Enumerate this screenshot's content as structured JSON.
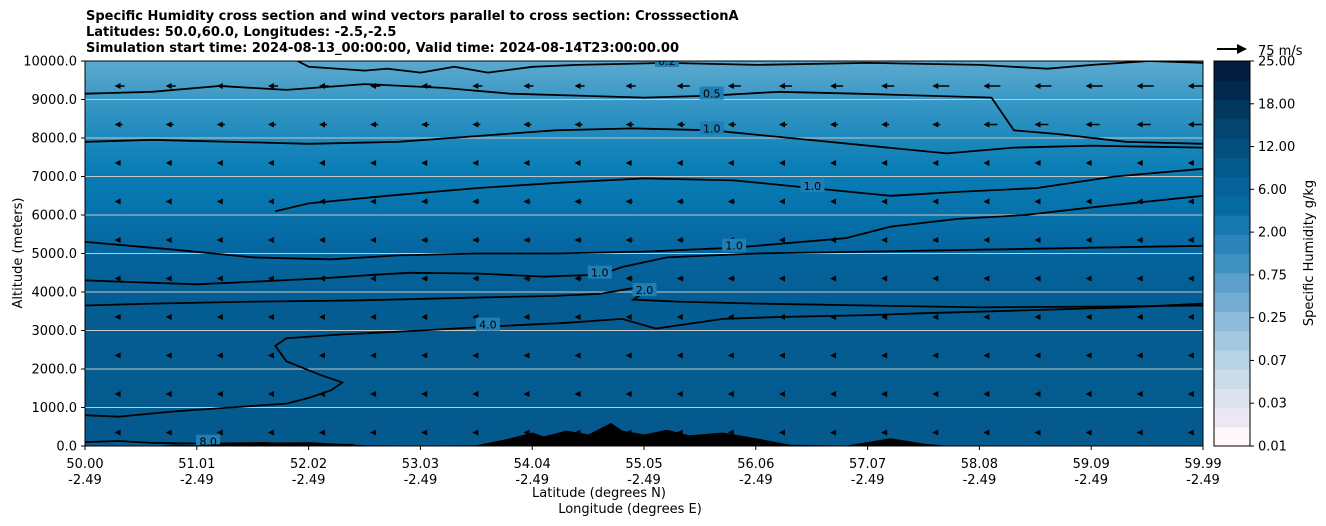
{
  "titles": {
    "line1": "Specific Humidity cross section and wind vectors parallel to cross section: CrosssectionA",
    "line2": "Latitudes: 50.0,60.0, Longitudes: -2.5,-2.5",
    "line3": "Simulation start time: 2024-08-13_00:00:00, Valid time: 2024-08-14T23:00:00.00"
  },
  "chart_data": {
    "type": "heatmap",
    "title": "Specific Humidity cross section and wind vectors parallel to cross section: CrosssectionA",
    "ylabel": "Altitude (meters)",
    "xlabel_lat": "Latitude (degrees N)",
    "xlabel_lon": "Longitude (degrees E)",
    "ylim": [
      0,
      10000
    ],
    "xlim": [
      50.0,
      59.99
    ],
    "y_ticks": [
      "0.0",
      "1000.0",
      "2000.0",
      "3000.0",
      "4000.0",
      "5000.0",
      "6000.0",
      "7000.0",
      "8000.0",
      "9000.0",
      "10000.0"
    ],
    "x_ticks_lat": [
      "50.00",
      "51.01",
      "52.02",
      "53.03",
      "54.04",
      "55.05",
      "56.06",
      "57.07",
      "58.08",
      "59.09",
      "59.99"
    ],
    "x_ticks_lon": [
      "-2.49",
      "-2.49",
      "-2.49",
      "-2.49",
      "-2.49",
      "-2.49",
      "-2.49",
      "-2.49",
      "-2.49",
      "-2.49",
      "-2.49"
    ],
    "grid": "horizontal lines",
    "colorbar": {
      "label": "Specific Humidity g/kg",
      "tick_labels": [
        "0.01",
        "0.03",
        "0.07",
        "0.25",
        "0.75",
        "2.00",
        "6.00",
        "12.00",
        "18.00",
        "25.00"
      ],
      "levels": [
        0.01,
        0.02,
        0.03,
        0.05,
        0.07,
        0.1,
        0.25,
        0.5,
        0.75,
        1.0,
        2.0,
        4.0,
        6.0,
        9.0,
        12.0,
        15.0,
        18.0,
        21.0,
        25.0
      ],
      "cmap": "PuBu"
    },
    "wind_reference": "75 m/s",
    "contour_lines": [
      {
        "level": "8.0",
        "points": [
          [
            50.0,
            100
          ],
          [
            50.3,
            130
          ],
          [
            50.6,
            80
          ],
          [
            51.1,
            60
          ],
          [
            51.6,
            80
          ],
          [
            52.0,
            40
          ],
          [
            52.4,
            30
          ]
        ]
      },
      {
        "level": "4.0",
        "points": [
          [
            50.0,
            800
          ],
          [
            50.3,
            760
          ],
          [
            50.8,
            900
          ],
          [
            51.3,
            1000
          ],
          [
            51.8,
            1100
          ],
          [
            52.0,
            1250
          ],
          [
            52.2,
            1450
          ],
          [
            52.3,
            1650
          ],
          [
            52.1,
            1850
          ],
          [
            51.8,
            2200
          ],
          [
            51.7,
            2600
          ],
          [
            51.8,
            2800
          ],
          [
            52.3,
            2900
          ],
          [
            53.0,
            3000
          ],
          [
            53.6,
            3100
          ],
          [
            54.3,
            3200
          ],
          [
            54.8,
            3300
          ],
          [
            55.1,
            3050
          ],
          [
            55.7,
            3300
          ],
          [
            56.2,
            3350
          ],
          [
            57.0,
            3400
          ],
          [
            57.5,
            3450
          ],
          [
            58.1,
            3500
          ],
          [
            58.7,
            3550
          ],
          [
            59.3,
            3600
          ],
          [
            59.99,
            3700
          ]
        ]
      },
      {
        "level": "2.0",
        "points": [
          [
            50.0,
            3650
          ],
          [
            50.6,
            3700
          ],
          [
            51.5,
            3750
          ],
          [
            52.4,
            3780
          ],
          [
            53.4,
            3850
          ],
          [
            54.2,
            3900
          ],
          [
            54.6,
            3950
          ],
          [
            54.9,
            4100
          ],
          [
            55.0,
            4000
          ],
          [
            54.9,
            3800
          ],
          [
            55.3,
            3750
          ],
          [
            56.0,
            3700
          ],
          [
            57.0,
            3650
          ],
          [
            58.0,
            3600
          ],
          [
            59.0,
            3620
          ],
          [
            59.99,
            3650
          ]
        ]
      },
      {
        "level": "1.0",
        "points": [
          [
            50.0,
            4300
          ],
          [
            50.5,
            4250
          ],
          [
            51.0,
            4200
          ],
          [
            51.6,
            4280
          ],
          [
            52.1,
            4350
          ],
          [
            52.6,
            4450
          ],
          [
            52.9,
            4500
          ],
          [
            53.5,
            4480
          ],
          [
            54.1,
            4400
          ],
          [
            54.6,
            4450
          ],
          [
            54.8,
            4650
          ],
          [
            55.2,
            4900
          ],
          [
            56.0,
            5000
          ],
          [
            57.0,
            5050
          ],
          [
            58.0,
            5100
          ],
          [
            59.0,
            5150
          ],
          [
            59.99,
            5200
          ]
        ]
      },
      {
        "level": "1.0",
        "points": [
          [
            50.0,
            5300
          ],
          [
            50.8,
            5100
          ],
          [
            51.5,
            4900
          ],
          [
            52.2,
            4850
          ],
          [
            52.8,
            4950
          ],
          [
            53.5,
            5000
          ],
          [
            54.2,
            5000
          ],
          [
            55.0,
            5050
          ],
          [
            55.8,
            5150
          ],
          [
            56.8,
            5400
          ],
          [
            57.2,
            5700
          ],
          [
            57.8,
            5900
          ],
          [
            58.4,
            6000
          ],
          [
            59.0,
            6200
          ],
          [
            59.99,
            6500
          ]
        ]
      },
      {
        "level": "1.0",
        "points": [
          [
            51.7,
            6100
          ],
          [
            52.0,
            6300
          ],
          [
            52.7,
            6500
          ],
          [
            53.5,
            6700
          ],
          [
            54.3,
            6850
          ],
          [
            55.0,
            6950
          ],
          [
            55.8,
            6900
          ],
          [
            56.5,
            6700
          ],
          [
            57.2,
            6500
          ],
          [
            57.8,
            6600
          ],
          [
            58.5,
            6700
          ],
          [
            59.2,
            7000
          ],
          [
            59.99,
            7200
          ]
        ]
      },
      {
        "level": "1.0",
        "points": [
          [
            50.0,
            7900
          ],
          [
            50.6,
            7950
          ],
          [
            51.3,
            7900
          ],
          [
            52.0,
            7850
          ],
          [
            52.8,
            7900
          ],
          [
            53.5,
            8050
          ],
          [
            54.2,
            8200
          ],
          [
            54.9,
            8250
          ],
          [
            55.6,
            8200
          ],
          [
            56.3,
            8000
          ],
          [
            57.0,
            7800
          ],
          [
            57.7,
            7600
          ],
          [
            58.3,
            7750
          ],
          [
            59.0,
            7800
          ],
          [
            59.99,
            7750
          ]
        ]
      },
      {
        "level": "0.5",
        "points": [
          [
            50.0,
            9150
          ],
          [
            50.6,
            9200
          ],
          [
            51.2,
            9350
          ],
          [
            51.8,
            9250
          ],
          [
            52.5,
            9400
          ],
          [
            53.2,
            9300
          ],
          [
            53.8,
            9150
          ],
          [
            54.4,
            9100
          ],
          [
            55.0,
            9050
          ],
          [
            55.6,
            9100
          ],
          [
            56.2,
            9200
          ],
          [
            56.9,
            9150
          ],
          [
            57.5,
            9100
          ],
          [
            58.1,
            9050
          ],
          [
            58.3,
            8200
          ],
          [
            58.7,
            8100
          ],
          [
            59.3,
            7900
          ],
          [
            59.99,
            7850
          ]
        ]
      },
      {
        "level": "0.2",
        "points": [
          [
            51.9,
            10000
          ],
          [
            52.0,
            9850
          ],
          [
            52.5,
            9750
          ],
          [
            52.7,
            9800
          ],
          [
            53.0,
            9700
          ],
          [
            53.3,
            9850
          ],
          [
            53.6,
            9700
          ],
          [
            54.0,
            9850
          ],
          [
            54.4,
            9900
          ],
          [
            55.2,
            9950
          ],
          [
            56.0,
            9900
          ],
          [
            57.0,
            9950
          ],
          [
            58.0,
            9900
          ],
          [
            58.6,
            9800
          ],
          [
            59.0,
            9900
          ],
          [
            59.5,
            10000
          ],
          [
            59.99,
            9950
          ]
        ]
      }
    ],
    "terrain": [
      [
        50.0,
        0
      ],
      [
        50.6,
        0
      ],
      [
        50.8,
        40
      ],
      [
        51.0,
        20
      ],
      [
        51.5,
        80
      ],
      [
        52.0,
        100
      ],
      [
        52.5,
        20
      ],
      [
        53.0,
        10
      ],
      [
        53.5,
        20
      ],
      [
        53.8,
        200
      ],
      [
        54.0,
        350
      ],
      [
        54.1,
        250
      ],
      [
        54.3,
        400
      ],
      [
        54.5,
        300
      ],
      [
        54.7,
        600
      ],
      [
        54.8,
        400
      ],
      [
        55.0,
        300
      ],
      [
        55.2,
        420
      ],
      [
        55.4,
        280
      ],
      [
        55.7,
        350
      ],
      [
        56.0,
        200
      ],
      [
        56.3,
        30
      ],
      [
        56.8,
        10
      ],
      [
        57.2,
        200
      ],
      [
        57.5,
        60
      ],
      [
        57.7,
        10
      ],
      [
        59.99,
        0
      ]
    ]
  }
}
